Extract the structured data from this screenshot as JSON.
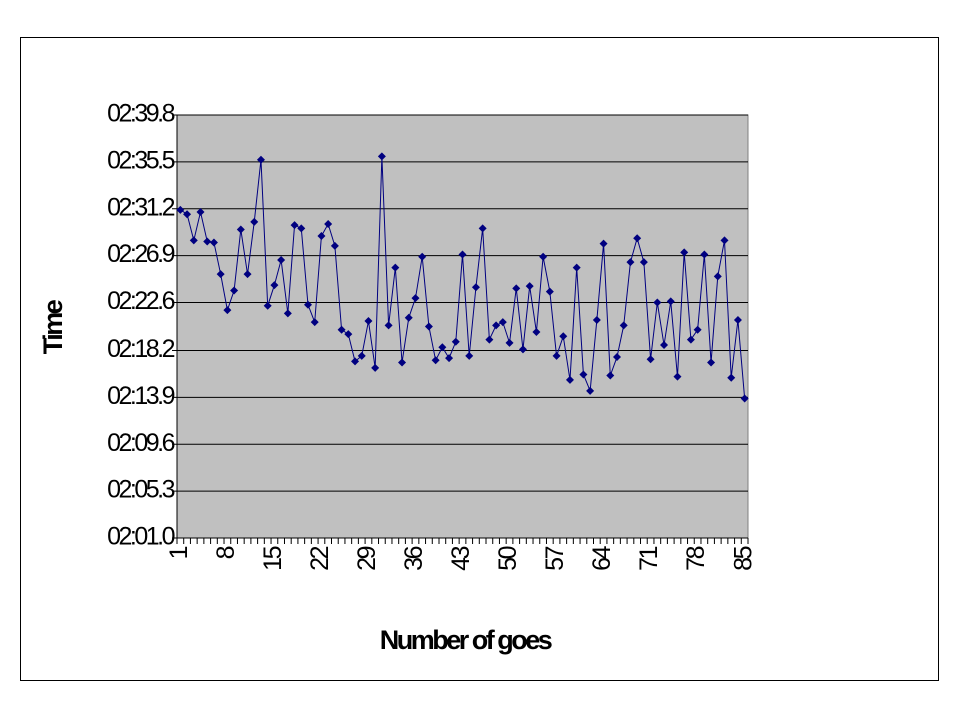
{
  "chart_data": {
    "type": "line",
    "x_label": "Number of goes",
    "y_label": "Time",
    "categories": [
      1,
      null,
      null,
      null,
      null,
      null,
      null,
      8,
      null,
      null,
      null,
      null,
      null,
      null,
      15,
      null,
      null,
      null,
      null,
      null,
      null,
      22,
      null,
      null,
      null,
      null,
      null,
      null,
      29,
      null,
      null,
      null,
      null,
      null,
      null,
      36,
      null,
      null,
      null,
      null,
      null,
      null,
      43,
      null,
      null,
      null,
      null,
      null,
      null,
      50,
      null,
      null,
      null,
      null,
      null,
      null,
      57,
      null,
      null,
      null,
      null,
      null,
      null,
      64,
      null,
      null,
      null,
      null,
      null,
      null,
      71,
      null,
      null,
      null,
      null,
      null,
      null,
      78,
      null,
      null,
      null,
      null,
      null,
      null,
      85
    ],
    "values": [
      151.1,
      150.7,
      148.3,
      150.9,
      148.2,
      148.1,
      145.2,
      141.9,
      143.7,
      149.3,
      145.2,
      150.0,
      155.7,
      142.3,
      144.2,
      146.5,
      141.6,
      149.7,
      149.4,
      142.4,
      140.8,
      148.7,
      149.8,
      147.8,
      140.1,
      139.7,
      137.2,
      137.7,
      140.9,
      136.6,
      156.0,
      140.5,
      145.8,
      137.1,
      141.2,
      143.0,
      146.8,
      140.4,
      137.3,
      138.5,
      137.5,
      139.0,
      147.0,
      137.7,
      144.0,
      149.4,
      139.2,
      140.5,
      140.8,
      138.9,
      143.9,
      138.3,
      144.1,
      139.9,
      146.8,
      143.6,
      137.7,
      139.5,
      135.5,
      145.8,
      136.0,
      134.5,
      141.0,
      148.0,
      135.9,
      137.6,
      140.5,
      146.3,
      148.5,
      146.3,
      137.4,
      142.6,
      138.7,
      142.7,
      135.8,
      147.2,
      139.2,
      140.1,
      147.0,
      137.1,
      145.0,
      148.3,
      135.7,
      141.0,
      133.8
    ],
    "color": "#000080",
    "plot_background": "#c0c0c0",
    "ylim": [
      121.0,
      159.8
    ],
    "yticks": [
      {
        "value": 121.0,
        "label": "02:01.0"
      },
      {
        "value": 125.3,
        "label": "02:05.3"
      },
      {
        "value": 129.6,
        "label": "02:09.6"
      },
      {
        "value": 133.9,
        "label": "02:13.9"
      },
      {
        "value": 138.2,
        "label": "02:18.2"
      },
      {
        "value": 142.6,
        "label": "02:22.6"
      },
      {
        "value": 146.9,
        "label": "02:26.9"
      },
      {
        "value": 151.2,
        "label": "02:31.2"
      },
      {
        "value": 155.5,
        "label": "02:35.5"
      },
      {
        "value": 159.8,
        "label": "02:39.8"
      }
    ],
    "grid": true
  }
}
